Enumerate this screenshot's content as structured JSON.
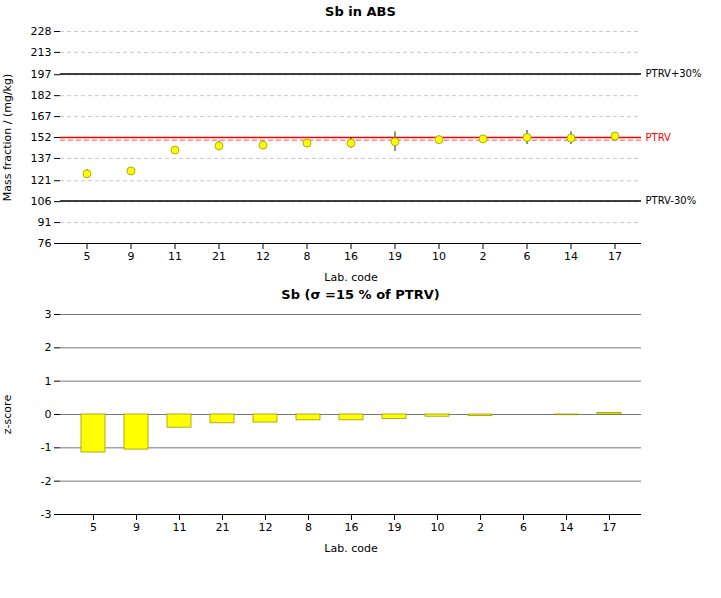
{
  "chart_data": [
    {
      "type": "scatter",
      "title": "Sb in ABS",
      "x_label": "Lab. code",
      "y_label": "Mass fraction / (mg/kg)",
      "categories": [
        "5",
        "9",
        "11",
        "21",
        "12",
        "8",
        "16",
        "19",
        "10",
        "2",
        "6",
        "14",
        "17"
      ],
      "values": [
        126.0,
        128.0,
        143.0,
        146.0,
        146.5,
        148.0,
        148.0,
        149.0,
        150.5,
        151.0,
        152.0,
        151.5,
        153.0
      ],
      "errors": [
        3.0,
        2.0,
        0.0,
        3.5,
        2.0,
        2.0,
        3.5,
        7.0,
        2.5,
        0.0,
        5.0,
        4.5,
        2.0
      ],
      "color": "#ffff00",
      "edge_color": "#999900",
      "error_color": "#222222",
      "marker": "circle",
      "ylim": [
        76,
        228
      ],
      "yticks": [
        76,
        91,
        106,
        121,
        137,
        152,
        167,
        182,
        197,
        213,
        228
      ],
      "grid": true,
      "grid_color": "#bbbbbb",
      "reference_lines": [
        {
          "value": 197.6,
          "label": "PTRV+30%",
          "color": "#000000",
          "line_style": "solid"
        },
        {
          "value": 106.4,
          "label": "PTRV-30%",
          "color": "#000000",
          "line_style": "solid"
        },
        {
          "value": 152,
          "label": "PTRV",
          "color": "#ff0000",
          "line_style": "solid"
        },
        {
          "value": 150,
          "color": "#ff8888",
          "line_style": "dashed"
        }
      ]
    },
    {
      "type": "bar",
      "title": "Sb (σ =15 % of PTRV)",
      "x_label": "Lab. code",
      "y_label": "z-score",
      "categories": [
        "5",
        "9",
        "11",
        "21",
        "12",
        "8",
        "16",
        "19",
        "10",
        "2",
        "6",
        "14",
        "17"
      ],
      "values": [
        -1.14035087719,
        -1.05263157895,
        -0.394736842105,
        -0.263157894737,
        -0.241228070175,
        -0.175438596491,
        -0.175438596491,
        -0.131578947368,
        -0.0657894736842,
        -0.0438596491228,
        0,
        -0.0219298245614,
        0.0438596491228
      ],
      "color": "#ffff00",
      "edge_color": "#999900",
      "ylim": [
        -3,
        3
      ],
      "yticks": [
        -3,
        -2,
        -1,
        0,
        1,
        2,
        3
      ],
      "grid": true,
      "grid_color": "#555555"
    }
  ]
}
